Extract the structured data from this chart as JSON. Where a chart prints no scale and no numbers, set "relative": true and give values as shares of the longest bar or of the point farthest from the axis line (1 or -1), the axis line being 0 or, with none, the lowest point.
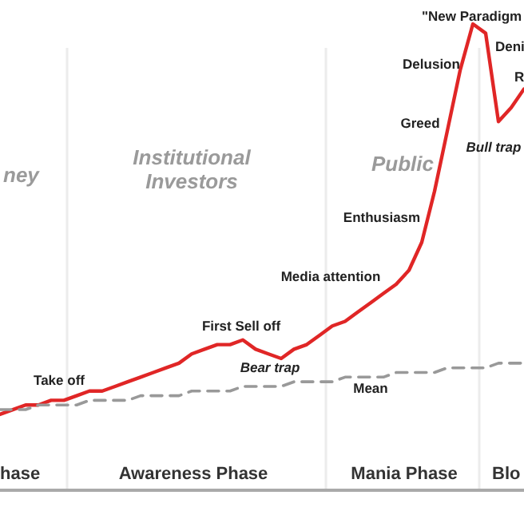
{
  "chart_data": {
    "type": "line",
    "relative": true,
    "categories": [
      null,
      null,
      null,
      null,
      null,
      null,
      null,
      null,
      null,
      null,
      null,
      null,
      null,
      null,
      null,
      null,
      null,
      null,
      null,
      null,
      null,
      null,
      null,
      null,
      null,
      null,
      null,
      null,
      null,
      null,
      null,
      null,
      null,
      null,
      null,
      null,
      null,
      null,
      null,
      null,
      null,
      null
    ],
    "series": [
      {
        "color": "#e02626",
        "values": [
          0.16,
          0.17,
          0.18,
          0.18,
          0.19,
          0.19,
          0.2,
          0.21,
          0.21,
          0.22,
          0.23,
          0.24,
          0.25,
          0.26,
          0.27,
          0.29,
          0.3,
          0.31,
          0.31,
          0.32,
          0.3,
          0.29,
          0.28,
          0.3,
          0.31,
          0.33,
          0.35,
          0.36,
          0.38,
          0.4,
          0.42,
          0.44,
          0.47,
          0.53,
          0.64,
          0.77,
          0.9,
          1,
          0.98,
          0.79,
          0.82,
          0.86
        ]
      },
      {
        "name": "Mean",
        "color": "#999999",
        "line_style": "dashed",
        "values": [
          0.17,
          0.17,
          0.17,
          0.18,
          0.18,
          0.18,
          0.18,
          0.19,
          0.19,
          0.19,
          0.19,
          0.2,
          0.2,
          0.2,
          0.2,
          0.21,
          0.21,
          0.21,
          0.21,
          0.22,
          0.22,
          0.22,
          0.22,
          0.23,
          0.23,
          0.23,
          0.23,
          0.24,
          0.24,
          0.24,
          0.24,
          0.25,
          0.25,
          0.25,
          0.25,
          0.26,
          0.26,
          0.26,
          0.26,
          0.27,
          0.27,
          0.27
        ]
      }
    ],
    "annotations": [
      "ney",
      "Institutional\nInvestors",
      "Public",
      "hase",
      "Awareness Phase",
      "Mania Phase",
      "Blo",
      "\"New Paradigm",
      "Delusion",
      "Deni",
      "R",
      "Greed",
      "Bull trap",
      "Enthusiasm",
      "Media attention",
      "First Sell off",
      "Bear trap",
      "Take off"
    ]
  }
}
